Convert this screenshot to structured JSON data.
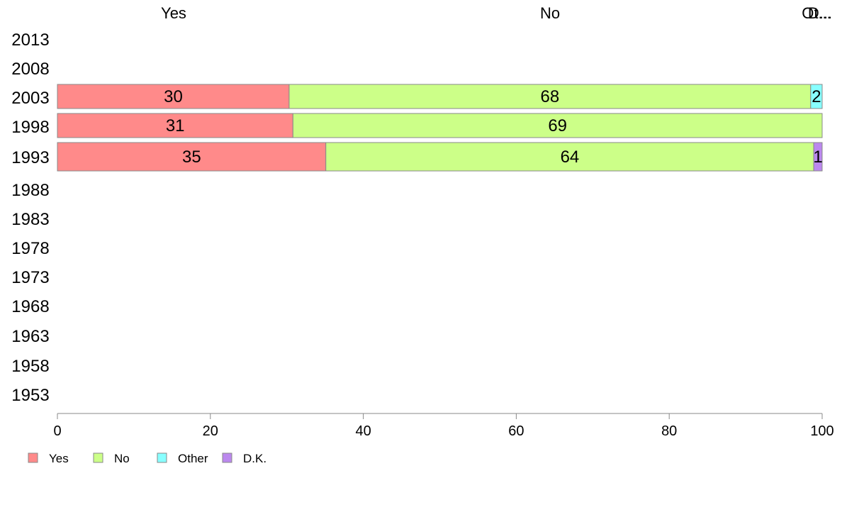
{
  "chart_data": {
    "type": "bar",
    "orientation": "horizontal",
    "stacked": true,
    "categories": [
      "2013",
      "2008",
      "2003",
      "1998",
      "1993",
      "1988",
      "1983",
      "1978",
      "1973",
      "1968",
      "1963",
      "1958",
      "1953"
    ],
    "series": [
      {
        "name": "Yes",
        "color": "#ff8a8a",
        "values": [
          null,
          null,
          30.3,
          30.8,
          35.1,
          null,
          null,
          null,
          null,
          null,
          null,
          null,
          null
        ],
        "labels": [
          null,
          null,
          "30",
          "31",
          "35",
          null,
          null,
          null,
          null,
          null,
          null,
          null,
          null
        ]
      },
      {
        "name": "No",
        "color": "#ccff88",
        "values": [
          null,
          null,
          68.2,
          69.2,
          63.8,
          null,
          null,
          null,
          null,
          null,
          null,
          null,
          null
        ],
        "labels": [
          null,
          null,
          "68",
          "69",
          "64",
          null,
          null,
          null,
          null,
          null,
          null,
          null,
          null
        ]
      },
      {
        "name": "Other",
        "color": "#88ffff",
        "values": [
          null,
          null,
          1.5,
          0,
          0,
          null,
          null,
          null,
          null,
          null,
          null,
          null,
          null
        ],
        "labels": [
          null,
          null,
          "2",
          null,
          null,
          null,
          null,
          null,
          null,
          null,
          null,
          null,
          null
        ]
      },
      {
        "name": "D.K.",
        "color": "#bb88ee",
        "values": [
          null,
          null,
          0,
          0,
          1.1,
          null,
          null,
          null,
          null,
          null,
          null,
          null,
          null
        ],
        "labels": [
          null,
          null,
          null,
          null,
          "1",
          null,
          null,
          null,
          null,
          null,
          null,
          null,
          null
        ]
      }
    ],
    "column_headers": [
      "Yes",
      "No",
      "Ot...",
      "D..."
    ],
    "xlim": [
      0,
      100
    ],
    "xticks": [
      0,
      20,
      40,
      60,
      80,
      100
    ],
    "legend": [
      "Yes",
      "No",
      "Other",
      "D.K."
    ],
    "legend_position": "bottom-left",
    "grid": false
  }
}
